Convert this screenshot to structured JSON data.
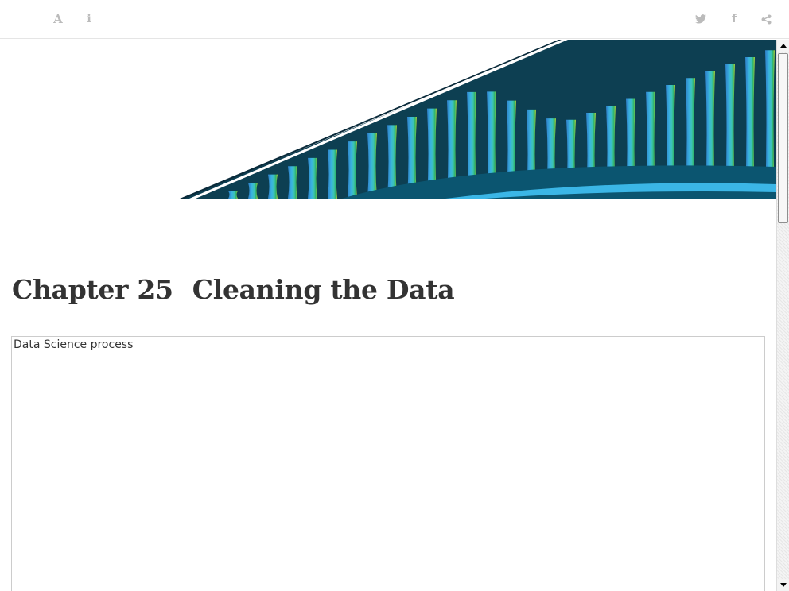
{
  "toolbar": {
    "font_icon_glyph": "A",
    "info_icon_glyph": "i",
    "facebook_icon_glyph": "f"
  },
  "chapter": {
    "number": "Chapter 25",
    "title": "Cleaning the Data"
  },
  "figure": {
    "alt_text": "Data Science process"
  },
  "colors": {
    "toolbar_icon": "#bbbbbb",
    "title_text": "#333333",
    "banner_dark": "#0d3f52",
    "banner_accent": "#3bb6e6"
  }
}
